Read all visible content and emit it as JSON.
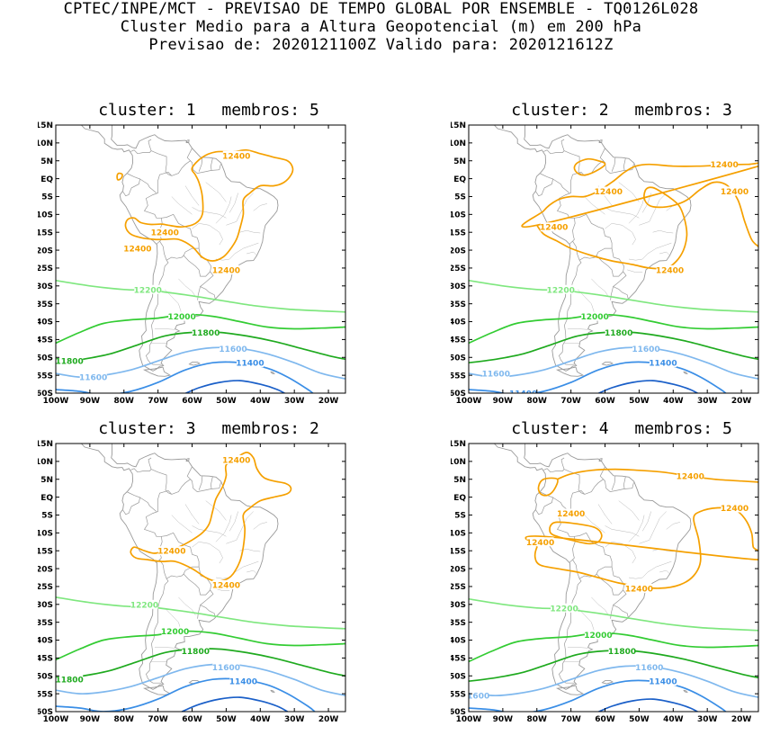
{
  "header": {
    "line1": "CPTEC/INPE/MCT - PREVISAO DE TEMPO GLOBAL POR ENSEMBLE - TQ0126L028",
    "line2": "Cluster Medio para a Altura Geopotencial (m) em 200 hPa",
    "line3": "Previsao de: 2020121100Z   Valido para: 2020121612Z"
  },
  "axes": {
    "lat_labels": [
      "15N",
      "10N",
      "5N",
      "EQ",
      "5S",
      "10S",
      "15S",
      "20S",
      "25S",
      "30S",
      "35S",
      "40S",
      "45S",
      "50S",
      "55S",
      "60S"
    ],
    "lon_labels": [
      "100W",
      "90W",
      "80W",
      "70W",
      "60W",
      "50W",
      "40W",
      "30W",
      "20W"
    ],
    "lat_range": [
      -60,
      15
    ],
    "lon_range": [
      -100,
      -15
    ]
  },
  "colors": {
    "c12400": "#f5a000",
    "c12200": "#7fe77f",
    "c12000": "#33cc33",
    "c11800": "#1faa1f",
    "c11600": "#7fb8ee",
    "c11400": "#3a8ee6",
    "c11200": "#1a5fc8",
    "coast": "#9a9a9a"
  },
  "panels": [
    {
      "cluster_label": "cluster:",
      "cluster": "1",
      "members_label": "membros:",
      "members": "5",
      "contour_labels": [
        {
          "value": "12400",
          "lon": -47,
          "lat": 6.5,
          "color": "c12400"
        },
        {
          "value": "12400",
          "lon": -68,
          "lat": -15,
          "color": "c12400"
        },
        {
          "value": "12400",
          "lon": -76,
          "lat": -19.5,
          "color": "c12400"
        },
        {
          "value": "12400",
          "lon": -50,
          "lat": -25.5,
          "color": "c12400"
        },
        {
          "value": "12200",
          "lon": -73,
          "lat": -31,
          "color": "c12200"
        },
        {
          "value": "12000",
          "lon": -63,
          "lat": -38.5,
          "color": "c12000"
        },
        {
          "value": "11800",
          "lon": -56,
          "lat": -43,
          "color": "c11800"
        },
        {
          "value": "11800",
          "lon": -96,
          "lat": -51,
          "color": "c11800"
        },
        {
          "value": "11600",
          "lon": -48,
          "lat": -47.5,
          "color": "c11600"
        },
        {
          "value": "11600",
          "lon": -89,
          "lat": -55.5,
          "color": "c11600"
        },
        {
          "value": "11400",
          "lon": -43,
          "lat": -51.5,
          "color": "c11400"
        }
      ]
    },
    {
      "cluster_label": "cluster:",
      "cluster": "2",
      "members_label": "membros:",
      "members": "3",
      "contour_labels": [
        {
          "value": "12400",
          "lon": -25,
          "lat": 4,
          "color": "c12400"
        },
        {
          "value": "12400",
          "lon": -59,
          "lat": -3.5,
          "color": "c12400"
        },
        {
          "value": "12400",
          "lon": -22,
          "lat": -3.5,
          "color": "c12400"
        },
        {
          "value": "12400",
          "lon": -75,
          "lat": -13.5,
          "color": "c12400"
        },
        {
          "value": "12400",
          "lon": -41,
          "lat": -25.5,
          "color": "c12400"
        },
        {
          "value": "12200",
          "lon": -73,
          "lat": -31,
          "color": "c12200"
        },
        {
          "value": "12000",
          "lon": -63,
          "lat": -38.5,
          "color": "c12000"
        },
        {
          "value": "11800",
          "lon": -56,
          "lat": -43,
          "color": "c11800"
        },
        {
          "value": "11600",
          "lon": -48,
          "lat": -47.5,
          "color": "c11600"
        },
        {
          "value": "11600",
          "lon": -92,
          "lat": -54.5,
          "color": "c11600"
        },
        {
          "value": "11400",
          "lon": -43,
          "lat": -51.5,
          "color": "c11400"
        },
        {
          "value": "11400",
          "lon": -84,
          "lat": -60,
          "color": "c11400"
        }
      ]
    },
    {
      "cluster_label": "cluster:",
      "cluster": "3",
      "members_label": "membros:",
      "members": "2",
      "contour_labels": [
        {
          "value": "12400",
          "lon": -47,
          "lat": 10.5,
          "color": "c12400"
        },
        {
          "value": "12400",
          "lon": -66,
          "lat": -15,
          "color": "c12400"
        },
        {
          "value": "12400",
          "lon": -50,
          "lat": -24.5,
          "color": "c12400"
        },
        {
          "value": "12200",
          "lon": -74,
          "lat": -30,
          "color": "c12200"
        },
        {
          "value": "12000",
          "lon": -65,
          "lat": -37.5,
          "color": "c12000"
        },
        {
          "value": "11800",
          "lon": -59,
          "lat": -43,
          "color": "c11800"
        },
        {
          "value": "11800",
          "lon": -96,
          "lat": -51,
          "color": "c11800"
        },
        {
          "value": "11600",
          "lon": -50,
          "lat": -47.5,
          "color": "c11600"
        },
        {
          "value": "11400",
          "lon": -45,
          "lat": -51.5,
          "color": "c11400"
        }
      ]
    },
    {
      "cluster_label": "cluster:",
      "cluster": "4",
      "members_label": "membros:",
      "members": "5",
      "contour_labels": [
        {
          "value": "12400",
          "lon": -35,
          "lat": 6,
          "color": "c12400"
        },
        {
          "value": "12400",
          "lon": -22,
          "lat": -3,
          "color": "c12400"
        },
        {
          "value": "12400",
          "lon": -70,
          "lat": -4.5,
          "color": "c12400"
        },
        {
          "value": "12400",
          "lon": -79,
          "lat": -12.5,
          "color": "c12400"
        },
        {
          "value": "12400",
          "lon": -50,
          "lat": -25.5,
          "color": "c12400"
        },
        {
          "value": "12200",
          "lon": -72,
          "lat": -31,
          "color": "c12200"
        },
        {
          "value": "12000",
          "lon": -62,
          "lat": -38.5,
          "color": "c12000"
        },
        {
          "value": "11800",
          "lon": -55,
          "lat": -43,
          "color": "c11800"
        },
        {
          "value": "11600",
          "lon": -47,
          "lat": -47.5,
          "color": "c11600"
        },
        {
          "value": "11600",
          "lon": -98,
          "lat": -55.5,
          "color": "c11600"
        },
        {
          "value": "11400",
          "lon": -43,
          "lat": -51.5,
          "color": "c11400"
        }
      ]
    }
  ]
}
